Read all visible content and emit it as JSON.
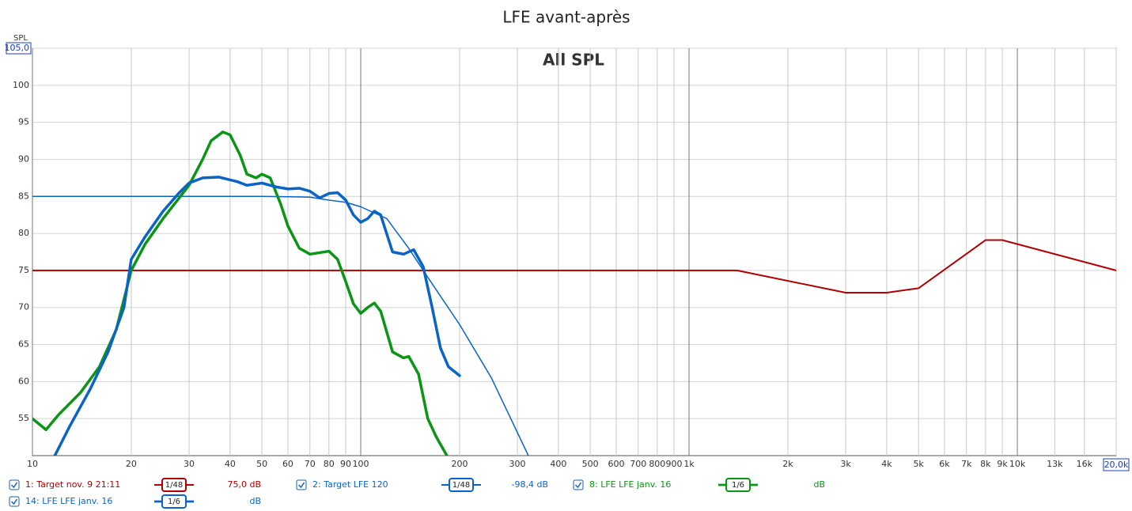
{
  "chart_data": {
    "type": "line",
    "title": "LFE avant-après",
    "annotation": "All SPL",
    "ylabel": "SPL",
    "log_x": true,
    "grid": true,
    "xlim": [
      10,
      20000
    ],
    "ylim": [
      50,
      105
    ],
    "xticks": [
      10,
      20,
      30,
      40,
      50,
      60,
      70,
      80,
      90,
      100,
      200,
      300,
      400,
      500,
      600,
      700,
      800,
      900,
      {
        "value": 1000,
        "label": "1k"
      },
      {
        "value": 2000,
        "label": "2k"
      },
      {
        "value": 3000,
        "label": "3k"
      },
      {
        "value": 4000,
        "label": "4k"
      },
      {
        "value": 5000,
        "label": "5k"
      },
      {
        "value": 6000,
        "label": "6k"
      },
      {
        "value": 7000,
        "label": "7k"
      },
      {
        "value": 8000,
        "label": "8k"
      },
      {
        "value": 9000,
        "label": "9k"
      },
      {
        "value": 10000,
        "label": "10k"
      },
      {
        "value": 13000,
        "label": "13k"
      },
      {
        "value": 16000,
        "label": "16k"
      },
      {
        "value": 20000,
        "label": "20,0k"
      }
    ],
    "yticks": [
      55,
      60,
      65,
      70,
      75,
      80,
      85,
      90,
      95,
      100,
      {
        "value": 105,
        "label": "105,0"
      }
    ],
    "series": [
      {
        "name": "1: Target nov. 9 21:11",
        "color": "#b00000",
        "width": 2,
        "smoothing": "1/48",
        "level": "75,0 dB",
        "x": [
          10,
          1400,
          3000,
          4000,
          5000,
          8000,
          9000,
          20000
        ],
        "values": [
          75,
          75,
          72,
          72,
          72.6,
          79.1,
          79.1,
          75
        ]
      },
      {
        "name": "2: Target LFE 120",
        "color": "#0a64c8",
        "width": 1.5,
        "smoothing": "1/48",
        "level": "-98,4 dB",
        "x": [
          10,
          50,
          70,
          80,
          90,
          100,
          120,
          140,
          155,
          200,
          250,
          324
        ],
        "values": [
          85,
          85,
          84.9,
          84.5,
          84.2,
          83.6,
          82,
          78,
          75,
          67.7,
          60.5,
          50
        ]
      },
      {
        "name": "8: LFE LFE janv. 16",
        "color": "#0a9614",
        "width": 3.5,
        "smoothing": "1/6",
        "level": "dB",
        "x": [
          10,
          11,
          12,
          14,
          16,
          18,
          20,
          22,
          25,
          30,
          33,
          35,
          38,
          40,
          43,
          45,
          48,
          50,
          53,
          57,
          60,
          65,
          70,
          75,
          80,
          85,
          90,
          95,
          100,
          105,
          110,
          115,
          125,
          135,
          140,
          150,
          160,
          170,
          183
        ],
        "values": [
          55,
          53.5,
          55.5,
          58.5,
          62,
          67,
          75,
          78.5,
          82,
          86.5,
          90,
          92.5,
          93.7,
          93.3,
          90.5,
          88,
          87.5,
          88,
          87.5,
          84,
          81,
          78,
          77.2,
          77.4,
          77.6,
          76.5,
          73.5,
          70.5,
          69.2,
          70,
          70.6,
          69.5,
          64,
          63.2,
          63.4,
          61,
          55,
          52.5,
          50
        ]
      },
      {
        "name": "14: LFE LFE janv. 16",
        "color": "#0a64c8",
        "width": 3.5,
        "smoothing": "1/6",
        "level": "dB",
        "x": [
          11.7,
          13,
          15,
          17,
          19,
          20,
          22,
          25,
          28,
          30,
          33,
          37,
          42,
          45,
          50,
          55,
          60,
          65,
          70,
          75,
          80,
          85,
          90,
          95,
          100,
          105,
          110,
          115,
          125,
          135,
          145,
          155,
          165,
          175,
          185,
          200
        ],
        "values": [
          50,
          54,
          59,
          64,
          70,
          76.5,
          79.5,
          83,
          85.5,
          86.8,
          87.5,
          87.6,
          87,
          86.5,
          86.8,
          86.3,
          86,
          86.1,
          85.7,
          84.8,
          85.4,
          85.5,
          84.5,
          82.5,
          81.5,
          82,
          83,
          82.5,
          77.5,
          77.2,
          77.8,
          75.5,
          70,
          64.5,
          62,
          60.8
        ]
      }
    ]
  }
}
